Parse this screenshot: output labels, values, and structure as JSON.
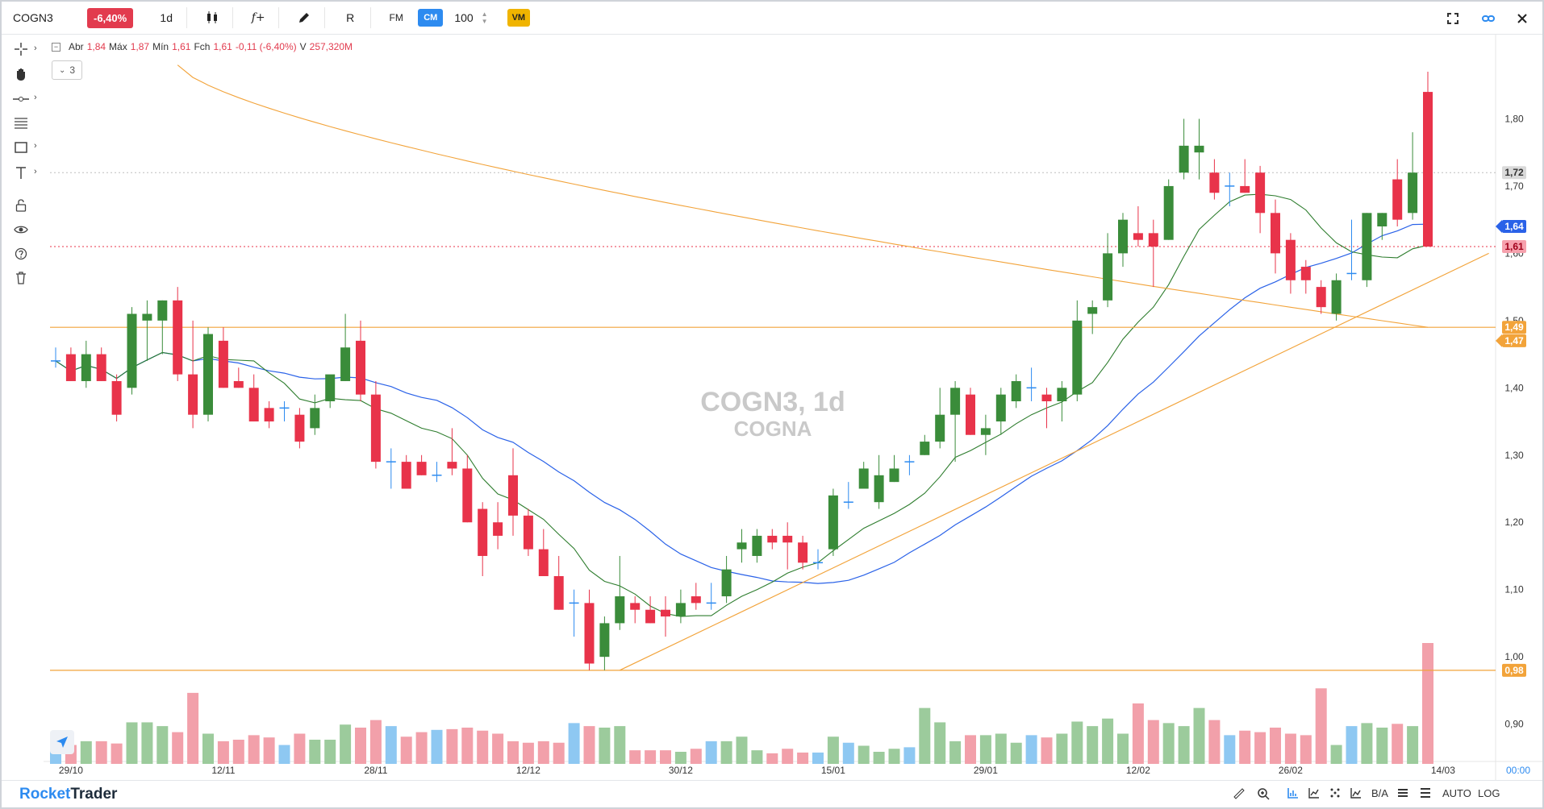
{
  "toolbar": {
    "ticker": "COGN3",
    "change": "-6,40%",
    "interval": "1d",
    "fx_label": "f+",
    "rx_label": "R",
    "fm_label": "FM",
    "cm_label": "CM",
    "cm_value": "100",
    "vm_label": "VM"
  },
  "legend": {
    "open_label": "Abr",
    "open": "1,84",
    "high_label": "Máx",
    "high": "1,87",
    "low_label": "Mín",
    "low": "1,61",
    "close_label": "Fch",
    "close": "1,61",
    "change": "-0,11 (-6,40%)",
    "volume_label": "V",
    "volume": "257,320M",
    "indicators_count": "3"
  },
  "watermark": {
    "symbol": "COGN3, 1d",
    "name": "COGNA"
  },
  "bottom": {
    "brand_a": "Rocket",
    "brand_b": "Trader",
    "ba": "B/A",
    "auto": "AUTO",
    "log": "LOG",
    "time": "00:00"
  },
  "colors": {
    "up": "#3a8c3a",
    "down": "#e8334a",
    "up_volume": "#9ccb9c",
    "down_volume": "#f2a0aa",
    "neutral_volume": "#8ec8f2",
    "sma_short": "#2e7d2e",
    "sma_long": "#2a62e8",
    "ma_slow": "#f2a33a",
    "hline": "#f2a33a"
  },
  "chart_data": {
    "type": "candlestick",
    "ylim": [
      0.86,
      1.9
    ],
    "y_ticks": [
      "0,90",
      "1,00",
      "1,10",
      "1,20",
      "1,30",
      "1,40",
      "1,50",
      "1,60",
      "1,70",
      "1,80"
    ],
    "x_tick_labels": [
      "29/10",
      "12/11",
      "28/11",
      "12/12",
      "30/12",
      "15/01",
      "29/01",
      "12/02",
      "26/02",
      "14/03"
    ],
    "price_labels": [
      {
        "value": "1,72",
        "kind": "last-high"
      },
      {
        "value": "1,64",
        "kind": "sma"
      },
      {
        "value": "1,61",
        "kind": "last"
      },
      {
        "value": "1,49",
        "kind": "hline"
      },
      {
        "value": "1,47",
        "kind": "ma"
      },
      {
        "value": "0,98",
        "kind": "hline"
      }
    ],
    "horizontal_lines": [
      1.49,
      0.98
    ],
    "trendline": {
      "from": {
        "index": 37,
        "value": 0.98
      },
      "to": {
        "index": 94,
        "value": 1.6
      }
    },
    "candles": [
      {
        "o": 1.44,
        "h": 1.46,
        "l": 1.43,
        "c": 1.44
      },
      {
        "o": 1.45,
        "h": 1.46,
        "l": 1.41,
        "c": 1.41
      },
      {
        "o": 1.41,
        "h": 1.47,
        "l": 1.4,
        "c": 1.45
      },
      {
        "o": 1.45,
        "h": 1.46,
        "l": 1.41,
        "c": 1.41
      },
      {
        "o": 1.41,
        "h": 1.42,
        "l": 1.35,
        "c": 1.36
      },
      {
        "o": 1.4,
        "h": 1.52,
        "l": 1.39,
        "c": 1.51
      },
      {
        "o": 1.5,
        "h": 1.53,
        "l": 1.44,
        "c": 1.51
      },
      {
        "o": 1.5,
        "h": 1.53,
        "l": 1.45,
        "c": 1.53
      },
      {
        "o": 1.53,
        "h": 1.55,
        "l": 1.41,
        "c": 1.42
      },
      {
        "o": 1.42,
        "h": 1.5,
        "l": 1.34,
        "c": 1.36
      },
      {
        "o": 1.36,
        "h": 1.49,
        "l": 1.35,
        "c": 1.48
      },
      {
        "o": 1.47,
        "h": 1.49,
        "l": 1.4,
        "c": 1.4
      },
      {
        "o": 1.41,
        "h": 1.43,
        "l": 1.4,
        "c": 1.4
      },
      {
        "o": 1.4,
        "h": 1.42,
        "l": 1.35,
        "c": 1.35
      },
      {
        "o": 1.37,
        "h": 1.38,
        "l": 1.34,
        "c": 1.35
      },
      {
        "o": 1.37,
        "h": 1.38,
        "l": 1.35,
        "c": 1.37
      },
      {
        "o": 1.36,
        "h": 1.37,
        "l": 1.31,
        "c": 1.32
      },
      {
        "o": 1.34,
        "h": 1.39,
        "l": 1.33,
        "c": 1.37
      },
      {
        "o": 1.38,
        "h": 1.41,
        "l": 1.37,
        "c": 1.42
      },
      {
        "o": 1.41,
        "h": 1.51,
        "l": 1.41,
        "c": 1.46
      },
      {
        "o": 1.47,
        "h": 1.5,
        "l": 1.38,
        "c": 1.39
      },
      {
        "o": 1.39,
        "h": 1.41,
        "l": 1.28,
        "c": 1.29
      },
      {
        "o": 1.29,
        "h": 1.31,
        "l": 1.25,
        "c": 1.29
      },
      {
        "o": 1.29,
        "h": 1.3,
        "l": 1.25,
        "c": 1.25
      },
      {
        "o": 1.29,
        "h": 1.3,
        "l": 1.27,
        "c": 1.27
      },
      {
        "o": 1.27,
        "h": 1.29,
        "l": 1.26,
        "c": 1.27
      },
      {
        "o": 1.29,
        "h": 1.34,
        "l": 1.27,
        "c": 1.28
      },
      {
        "o": 1.28,
        "h": 1.3,
        "l": 1.2,
        "c": 1.2
      },
      {
        "o": 1.22,
        "h": 1.23,
        "l": 1.12,
        "c": 1.15
      },
      {
        "o": 1.2,
        "h": 1.23,
        "l": 1.16,
        "c": 1.18
      },
      {
        "o": 1.27,
        "h": 1.31,
        "l": 1.18,
        "c": 1.21
      },
      {
        "o": 1.21,
        "h": 1.22,
        "l": 1.15,
        "c": 1.16
      },
      {
        "o": 1.16,
        "h": 1.19,
        "l": 1.12,
        "c": 1.12
      },
      {
        "o": 1.12,
        "h": 1.15,
        "l": 1.07,
        "c": 1.07
      },
      {
        "o": 1.08,
        "h": 1.1,
        "l": 1.03,
        "c": 1.08
      },
      {
        "o": 1.08,
        "h": 1.1,
        "l": 0.98,
        "c": 0.99
      },
      {
        "o": 1.0,
        "h": 1.06,
        "l": 0.98,
        "c": 1.05
      },
      {
        "o": 1.05,
        "h": 1.15,
        "l": 1.04,
        "c": 1.09
      },
      {
        "o": 1.08,
        "h": 1.09,
        "l": 1.05,
        "c": 1.07
      },
      {
        "o": 1.07,
        "h": 1.09,
        "l": 1.05,
        "c": 1.05
      },
      {
        "o": 1.07,
        "h": 1.09,
        "l": 1.03,
        "c": 1.06
      },
      {
        "o": 1.06,
        "h": 1.1,
        "l": 1.05,
        "c": 1.08
      },
      {
        "o": 1.09,
        "h": 1.11,
        "l": 1.07,
        "c": 1.08
      },
      {
        "o": 1.08,
        "h": 1.11,
        "l": 1.07,
        "c": 1.08
      },
      {
        "o": 1.09,
        "h": 1.15,
        "l": 1.08,
        "c": 1.13
      },
      {
        "o": 1.16,
        "h": 1.19,
        "l": 1.14,
        "c": 1.17
      },
      {
        "o": 1.15,
        "h": 1.19,
        "l": 1.14,
        "c": 1.18
      },
      {
        "o": 1.18,
        "h": 1.19,
        "l": 1.16,
        "c": 1.17
      },
      {
        "o": 1.18,
        "h": 1.2,
        "l": 1.13,
        "c": 1.17
      },
      {
        "o": 1.17,
        "h": 1.18,
        "l": 1.13,
        "c": 1.14
      },
      {
        "o": 1.14,
        "h": 1.16,
        "l": 1.13,
        "c": 1.14
      },
      {
        "o": 1.16,
        "h": 1.25,
        "l": 1.15,
        "c": 1.24
      },
      {
        "o": 1.23,
        "h": 1.26,
        "l": 1.22,
        "c": 1.23
      },
      {
        "o": 1.25,
        "h": 1.29,
        "l": 1.25,
        "c": 1.28
      },
      {
        "o": 1.23,
        "h": 1.3,
        "l": 1.22,
        "c": 1.27
      },
      {
        "o": 1.26,
        "h": 1.3,
        "l": 1.26,
        "c": 1.28
      },
      {
        "o": 1.29,
        "h": 1.3,
        "l": 1.27,
        "c": 1.29
      },
      {
        "o": 1.3,
        "h": 1.33,
        "l": 1.3,
        "c": 1.32
      },
      {
        "o": 1.32,
        "h": 1.4,
        "l": 1.31,
        "c": 1.36
      },
      {
        "o": 1.36,
        "h": 1.41,
        "l": 1.29,
        "c": 1.4
      },
      {
        "o": 1.39,
        "h": 1.4,
        "l": 1.33,
        "c": 1.33
      },
      {
        "o": 1.33,
        "h": 1.36,
        "l": 1.3,
        "c": 1.34
      },
      {
        "o": 1.35,
        "h": 1.4,
        "l": 1.33,
        "c": 1.39
      },
      {
        "o": 1.38,
        "h": 1.42,
        "l": 1.37,
        "c": 1.41
      },
      {
        "o": 1.4,
        "h": 1.43,
        "l": 1.38,
        "c": 1.4
      },
      {
        "o": 1.39,
        "h": 1.4,
        "l": 1.34,
        "c": 1.38
      },
      {
        "o": 1.38,
        "h": 1.41,
        "l": 1.35,
        "c": 1.4
      },
      {
        "o": 1.39,
        "h": 1.53,
        "l": 1.38,
        "c": 1.5
      },
      {
        "o": 1.51,
        "h": 1.53,
        "l": 1.48,
        "c": 1.52
      },
      {
        "o": 1.53,
        "h": 1.63,
        "l": 1.52,
        "c": 1.6
      },
      {
        "o": 1.6,
        "h": 1.66,
        "l": 1.58,
        "c": 1.65
      },
      {
        "o": 1.63,
        "h": 1.67,
        "l": 1.61,
        "c": 1.62
      },
      {
        "o": 1.63,
        "h": 1.65,
        "l": 1.55,
        "c": 1.61
      },
      {
        "o": 1.62,
        "h": 1.71,
        "l": 1.62,
        "c": 1.7
      },
      {
        "o": 1.72,
        "h": 1.8,
        "l": 1.71,
        "c": 1.76
      },
      {
        "o": 1.75,
        "h": 1.8,
        "l": 1.71,
        "c": 1.76
      },
      {
        "o": 1.72,
        "h": 1.74,
        "l": 1.68,
        "c": 1.69
      },
      {
        "o": 1.7,
        "h": 1.72,
        "l": 1.67,
        "c": 1.7
      },
      {
        "o": 1.7,
        "h": 1.74,
        "l": 1.69,
        "c": 1.69
      },
      {
        "o": 1.72,
        "h": 1.73,
        "l": 1.63,
        "c": 1.66
      },
      {
        "o": 1.66,
        "h": 1.68,
        "l": 1.57,
        "c": 1.6
      },
      {
        "o": 1.62,
        "h": 1.63,
        "l": 1.54,
        "c": 1.56
      },
      {
        "o": 1.58,
        "h": 1.59,
        "l": 1.54,
        "c": 1.56
      },
      {
        "o": 1.55,
        "h": 1.56,
        "l": 1.51,
        "c": 1.52
      },
      {
        "o": 1.51,
        "h": 1.57,
        "l": 1.5,
        "c": 1.56
      },
      {
        "o": 1.57,
        "h": 1.65,
        "l": 1.56,
        "c": 1.57
      },
      {
        "o": 1.56,
        "h": 1.66,
        "l": 1.55,
        "c": 1.66
      },
      {
        "o": 1.64,
        "h": 1.66,
        "l": 1.62,
        "c": 1.66
      },
      {
        "o": 1.71,
        "h": 1.74,
        "l": 1.64,
        "c": 1.65
      },
      {
        "o": 1.66,
        "h": 1.78,
        "l": 1.65,
        "c": 1.72
      },
      {
        "o": 1.84,
        "h": 1.87,
        "l": 1.61,
        "c": 1.61
      }
    ],
    "volume": [
      22,
      25,
      30,
      30,
      27,
      55,
      55,
      50,
      42,
      94,
      40,
      30,
      32,
      38,
      35,
      25,
      40,
      32,
      32,
      52,
      48,
      58,
      50,
      36,
      42,
      45,
      46,
      48,
      44,
      40,
      30,
      28,
      30,
      28,
      54,
      50,
      48,
      50,
      18,
      18,
      18,
      16,
      20,
      30,
      30,
      36,
      18,
      14,
      20,
      15,
      15,
      36,
      28,
      24,
      16,
      20,
      22,
      74,
      55,
      30,
      38,
      38,
      40,
      28,
      38,
      35,
      40,
      56,
      50,
      60,
      40,
      80,
      58,
      54,
      50,
      74,
      58,
      38,
      44,
      42,
      48,
      40,
      38,
      100,
      25,
      50,
      54,
      48,
      53,
      50,
      160
    ]
  }
}
